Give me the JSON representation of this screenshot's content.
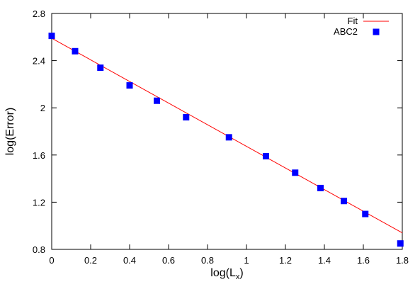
{
  "chart_data": {
    "type": "scatter",
    "title": "",
    "xlabel": {
      "main": "log(L",
      "sub": "x",
      "close": ")"
    },
    "ylabel": "log(Error)",
    "xlim": [
      0,
      1.8
    ],
    "ylim": [
      0.8,
      2.8
    ],
    "xticks": [
      0,
      0.2,
      0.4,
      0.6,
      0.8,
      1,
      1.2,
      1.4,
      1.6,
      1.8
    ],
    "xtick_labels": [
      "0",
      "0.2",
      "0.4",
      "0.6",
      "0.8",
      "1",
      "1.2",
      "1.4",
      "1.6",
      "1.8"
    ],
    "yticks": [
      0.8,
      1.2,
      1.6,
      2,
      2.4,
      2.8
    ],
    "ytick_labels": [
      "0.8",
      "1.2",
      "1.6",
      "2",
      "2.4",
      "2.8"
    ],
    "grid": false,
    "legend_position": "top-right",
    "series": [
      {
        "name": "Fit",
        "kind": "line",
        "color": "#ff0000",
        "x": [
          0,
          1.8
        ],
        "y": [
          2.59,
          0.94
        ]
      },
      {
        "name": "ABC2",
        "kind": "points",
        "marker": "square",
        "color": "#0000ff",
        "x": [
          0,
          0.12,
          0.25,
          0.4,
          0.54,
          0.69,
          0.91,
          1.1,
          1.25,
          1.38,
          1.5,
          1.61,
          1.79
        ],
        "y": [
          2.61,
          2.48,
          2.34,
          2.19,
          2.06,
          1.92,
          1.75,
          1.59,
          1.45,
          1.32,
          1.21,
          1.1,
          0.85
        ]
      }
    ]
  }
}
